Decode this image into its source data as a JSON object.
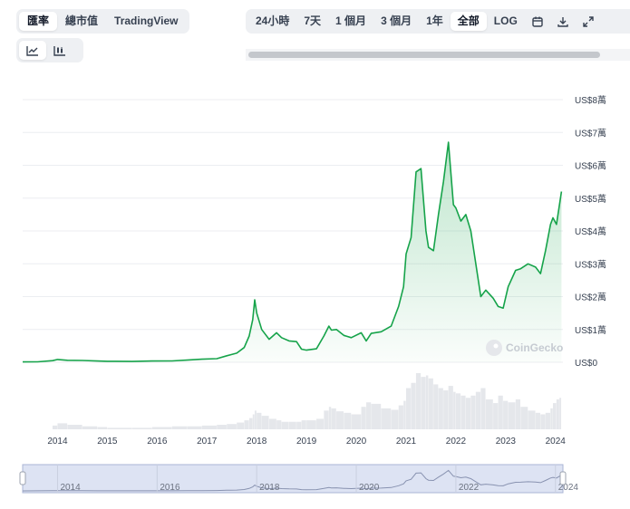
{
  "toolbar": {
    "view_tabs": [
      {
        "label": "匯率",
        "active": true
      },
      {
        "label": "總市值",
        "active": false
      },
      {
        "label": "TradingView",
        "active": false
      }
    ],
    "chart_types": [
      {
        "icon": "line-chart-icon",
        "active": true
      },
      {
        "icon": "candlestick-chart-icon",
        "active": false
      }
    ],
    "ranges": [
      {
        "label": "24小時",
        "active": false
      },
      {
        "label": "7天",
        "active": false
      },
      {
        "label": "1 個月",
        "active": false
      },
      {
        "label": "3 個月",
        "active": false
      },
      {
        "label": "1年",
        "active": false
      },
      {
        "label": "全部",
        "active": true
      },
      {
        "label": "LOG",
        "active": false
      }
    ],
    "icons": [
      "calendar-icon",
      "download-icon",
      "fullscreen-icon"
    ]
  },
  "watermark": "CoinGecko",
  "colors": {
    "line": "#16a34a",
    "fill": "#16a34a",
    "volume": "#e5e7eb",
    "navigator": "#dde3f3"
  },
  "chart_data": {
    "type": "area",
    "grid": true,
    "y_ticks": [
      "US$0",
      "US$1萬",
      "US$2萬",
      "US$3萬",
      "US$4萬",
      "US$5萬",
      "US$6萬",
      "US$7萬",
      "US$8萬"
    ],
    "x_ticks": [
      "2014",
      "2015",
      "2016",
      "2017",
      "2018",
      "2019",
      "2020",
      "2021",
      "2022",
      "2023",
      "2024"
    ],
    "navigator_ticks": [
      "2014",
      "2016",
      "2018",
      "2020",
      "2022",
      "2024"
    ],
    "ylim": [
      0,
      80000
    ],
    "xlim": [
      2013.3,
      2024.15
    ],
    "series": [
      {
        "x": [
          2013.3,
          2013.6,
          2013.9,
          2014.0,
          2014.2,
          2014.5,
          2014.8,
          2015.0,
          2015.5,
          2015.9,
          2016.3,
          2016.6,
          2016.9,
          2017.2,
          2017.4,
          2017.6,
          2017.75,
          2017.85,
          2017.92,
          2017.96,
          2018.0,
          2018.1,
          2018.25,
          2018.4,
          2018.5,
          2018.65,
          2018.8,
          2018.9,
          2019.0,
          2019.2,
          2019.35,
          2019.45,
          2019.5,
          2019.6,
          2019.75,
          2019.9,
          2020.1,
          2020.2,
          2020.3,
          2020.5,
          2020.7,
          2020.85,
          2020.95,
          2021.0,
          2021.1,
          2021.2,
          2021.3,
          2021.4,
          2021.45,
          2021.55,
          2021.65,
          2021.75,
          2021.85,
          2021.95,
          2022.0,
          2022.1,
          2022.2,
          2022.3,
          2022.4,
          2022.5,
          2022.6,
          2022.75,
          2022.85,
          2022.95,
          2023.05,
          2023.2,
          2023.3,
          2023.45,
          2023.6,
          2023.7,
          2023.8,
          2023.9,
          2023.95,
          2024.02,
          2024.08,
          2024.12
        ],
        "y": [
          100,
          150,
          500,
          850,
          600,
          550,
          400,
          300,
          250,
          400,
          420,
          650,
          950,
          1100,
          2000,
          2800,
          4500,
          8000,
          13000,
          19000,
          15000,
          10000,
          7000,
          9000,
          7500,
          6500,
          6300,
          4000,
          3700,
          4100,
          8000,
          11000,
          9800,
          10000,
          8200,
          7500,
          9000,
          6500,
          8800,
          9300,
          11000,
          17000,
          23000,
          33000,
          38000,
          58000,
          59000,
          40000,
          35000,
          34000,
          45000,
          55000,
          67000,
          48000,
          47000,
          43000,
          45000,
          40000,
          30000,
          20000,
          22000,
          19500,
          17000,
          16500,
          23000,
          28000,
          28500,
          30000,
          29000,
          27000,
          34000,
          42000,
          44000,
          42000,
          48000,
          52000
        ],
        "volume": [
          0,
          0,
          5,
          8,
          6,
          4,
          3,
          2,
          2,
          3,
          4,
          4,
          5,
          6,
          7,
          9,
          12,
          15,
          20,
          25,
          22,
          18,
          14,
          12,
          10,
          10,
          10,
          12,
          12,
          14,
          25,
          30,
          28,
          24,
          22,
          20,
          30,
          36,
          34,
          28,
          26,
          32,
          38,
          55,
          62,
          75,
          70,
          72,
          68,
          60,
          55,
          52,
          58,
          50,
          48,
          45,
          42,
          45,
          50,
          55,
          40,
          35,
          45,
          38,
          36,
          40,
          30,
          25,
          22,
          20,
          22,
          28,
          35,
          40,
          42,
          45
        ]
      }
    ]
  }
}
